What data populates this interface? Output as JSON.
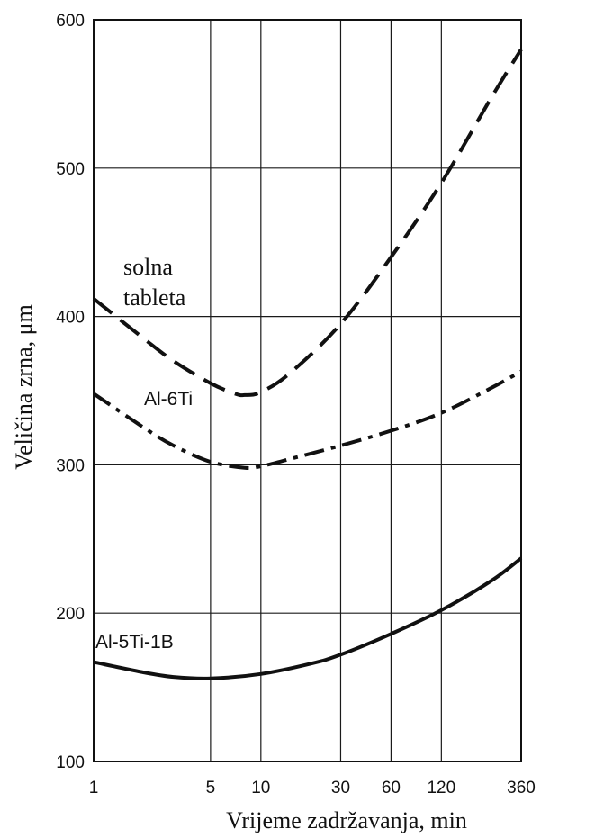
{
  "chart_data": {
    "type": "line",
    "title": "",
    "xlabel": "Vrijeme zadržavanja, min",
    "ylabel": "Veličina zrna, μm",
    "x_scale": "log",
    "xlim": [
      1,
      360
    ],
    "ylim": [
      100,
      600
    ],
    "x_ticks": [
      1,
      5,
      10,
      30,
      60,
      120,
      360
    ],
    "x_tick_labels": [
      "1",
      "5",
      "10",
      "30",
      "60",
      "120",
      "360"
    ],
    "y_ticks": [
      100,
      200,
      300,
      400,
      500,
      600
    ],
    "y_tick_labels": [
      "100",
      "200",
      "300",
      "400",
      "500",
      "600"
    ],
    "grid": true,
    "series": [
      {
        "name": "solna tableta",
        "line_style": "dashed",
        "x": [
          1,
          2,
          3,
          5,
          7,
          8,
          10,
          15,
          30,
          60,
          120,
          240,
          360
        ],
        "y": [
          412,
          385,
          370,
          355,
          348,
          347,
          349,
          362,
          395,
          440,
          490,
          548,
          580
        ]
      },
      {
        "name": "Al-6Ti",
        "line_style": "dash-dot",
        "x": [
          1,
          2,
          3,
          5,
          8,
          10,
          15,
          30,
          60,
          120,
          240,
          360
        ],
        "y": [
          348,
          325,
          313,
          302,
          298,
          299,
          304,
          313,
          323,
          335,
          352,
          363
        ]
      },
      {
        "name": "Al-5Ti-1B",
        "line_style": "solid",
        "x": [
          1,
          2,
          3,
          5,
          10,
          20,
          30,
          60,
          120,
          240,
          360
        ],
        "y": [
          167,
          160,
          157,
          156,
          159,
          166,
          172,
          186,
          202,
          222,
          237
        ]
      }
    ],
    "series_labels": {
      "solna_line1": "solna",
      "solna_line2": "tableta",
      "al6ti": "Al-6Ti",
      "al5ti1b": "Al-5Ti-1B"
    },
    "colors": {
      "lines": "#111111",
      "grid": "#1a1a1a"
    }
  }
}
